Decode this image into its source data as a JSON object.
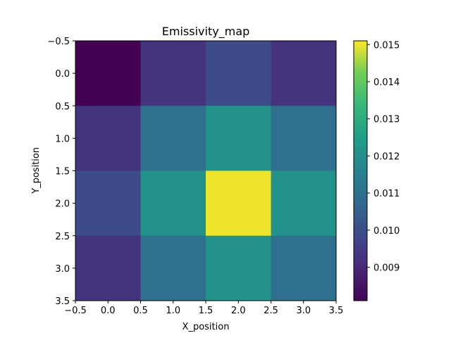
{
  "chart_data": {
    "type": "heatmap",
    "title": "Emissivity_map",
    "xlabel": "X_position",
    "ylabel": "Y_position",
    "colormap": "viridis",
    "x_categories": [
      0,
      1,
      2,
      3
    ],
    "y_categories": [
      0,
      1,
      2,
      3
    ],
    "xlim": [
      -0.5,
      3.5
    ],
    "ylim": [
      3.5,
      -0.5
    ],
    "x_ticks": [
      "−0.5",
      "0.0",
      "0.5",
      "1.0",
      "1.5",
      "2.0",
      "2.5",
      "3.0",
      "3.5"
    ],
    "y_ticks": [
      "−0.5",
      "0.0",
      "0.5",
      "1.0",
      "1.5",
      "2.0",
      "2.5",
      "3.0",
      "3.5"
    ],
    "values": [
      [
        0.0081,
        0.0093,
        0.0099,
        0.0093
      ],
      [
        0.0093,
        0.011,
        0.0121,
        0.011
      ],
      [
        0.0099,
        0.0121,
        0.015,
        0.0121
      ],
      [
        0.0093,
        0.011,
        0.0121,
        0.011
      ]
    ],
    "vmin": 0.0081,
    "vmax": 0.0151,
    "colorbar_ticks": [
      "0.009",
      "0.010",
      "0.011",
      "0.012",
      "0.013",
      "0.014",
      "0.015"
    ],
    "colorbar_tick_values": [
      0.009,
      0.01,
      0.011,
      0.012,
      0.013,
      0.014,
      0.015
    ]
  }
}
